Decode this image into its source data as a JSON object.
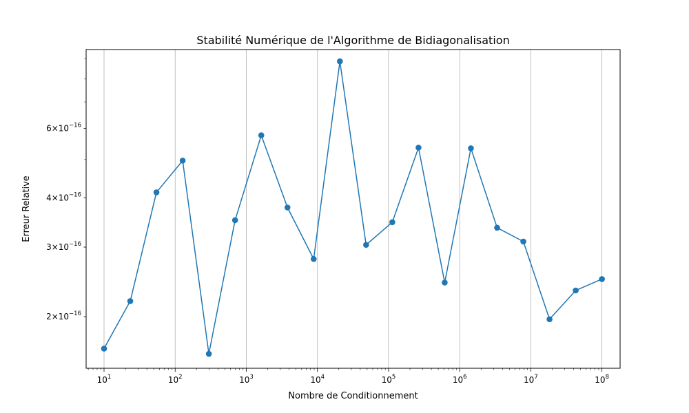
{
  "chart_data": {
    "type": "line",
    "title": "Stabilité Numérique de l'Algorithme de Bidiagonalisation",
    "xlabel": "Nombre de Conditionnement",
    "ylabel": "Erreur Relative",
    "xscale": "log",
    "yscale": "log",
    "xlim": [
      5.6,
      180000000
    ],
    "ylim": [
      1.48e-16,
      9.5e-16
    ],
    "grid": "vertical only, major x ticks",
    "color": "#1f77b4",
    "marker": "circle",
    "x_ticks": [
      {
        "value": 10,
        "base": "10",
        "exp": "1"
      },
      {
        "value": 100,
        "base": "10",
        "exp": "2"
      },
      {
        "value": 1000,
        "base": "10",
        "exp": "3"
      },
      {
        "value": 10000,
        "base": "10",
        "exp": "4"
      },
      {
        "value": 100000,
        "base": "10",
        "exp": "5"
      },
      {
        "value": 1000000,
        "base": "10",
        "exp": "6"
      },
      {
        "value": 10000000,
        "base": "10",
        "exp": "7"
      },
      {
        "value": 100000000,
        "base": "10",
        "exp": "8"
      }
    ],
    "y_ticks": [
      {
        "value": 2e-16,
        "mant": "2",
        "base": "10",
        "exp": "−16"
      },
      {
        "value": 3e-16,
        "mant": "3",
        "base": "10",
        "exp": "−16"
      },
      {
        "value": 4e-16,
        "mant": "4",
        "base": "10",
        "exp": "−16"
      },
      {
        "value": 6e-16,
        "mant": "6",
        "base": "10",
        "exp": "−16"
      }
    ],
    "series": [
      {
        "x": [
          10,
          23.36,
          54.56,
          127.4,
          297.6,
          695.2,
          1624,
          3793,
          8859,
          20690,
          48330,
          112900,
          263700,
          615800,
          1438000,
          3360000,
          7848000,
          18330000,
          42810000,
          100000000
        ],
        "y": [
          1.66e-16,
          2.19e-16,
          4.13e-16,
          4.97e-16,
          1.61e-16,
          3.51e-16,
          5.76e-16,
          3.78e-16,
          2.8e-16,
          8.87e-16,
          3.04e-16,
          3.47e-16,
          5.36e-16,
          2.44e-16,
          5.34e-16,
          3.36e-16,
          3.1e-16,
          1.97e-16,
          2.33e-16,
          2.49e-16
        ]
      }
    ]
  }
}
